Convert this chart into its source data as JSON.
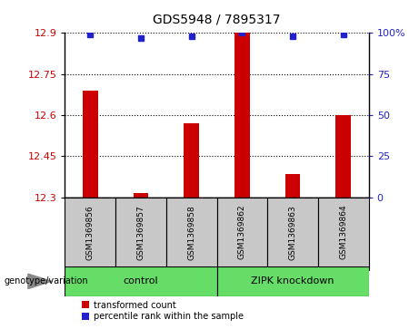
{
  "title": "GDS5948 / 7895317",
  "samples": [
    "GSM1369856",
    "GSM1369857",
    "GSM1369858",
    "GSM1369862",
    "GSM1369863",
    "GSM1369864"
  ],
  "red_values": [
    12.69,
    12.315,
    12.57,
    12.9,
    12.385,
    12.6
  ],
  "blue_values": [
    99,
    97,
    98,
    100,
    98,
    99
  ],
  "ymin": 12.3,
  "ymax": 12.9,
  "yticks": [
    12.3,
    12.45,
    12.6,
    12.75,
    12.9
  ],
  "ytick_labels": [
    "12.3",
    "12.45",
    "12.6",
    "12.75",
    "12.9"
  ],
  "y2min": 0,
  "y2max": 100,
  "y2ticks": [
    0,
    25,
    50,
    75,
    100
  ],
  "y2tick_labels": [
    "0",
    "25",
    "50",
    "75",
    "100%"
  ],
  "red_color": "#CC0000",
  "blue_color": "#2222CC",
  "bar_bg_color": "#C8C8C8",
  "plot_bg_color": "#FFFFFF",
  "legend_red": "transformed count",
  "legend_blue": "percentile rank within the sample",
  "genotype_label": "genotype/variation",
  "control_label": "control",
  "zipk_label": "ZIPK knockdown",
  "group_color": "#66DD66",
  "bar_width": 0.3
}
